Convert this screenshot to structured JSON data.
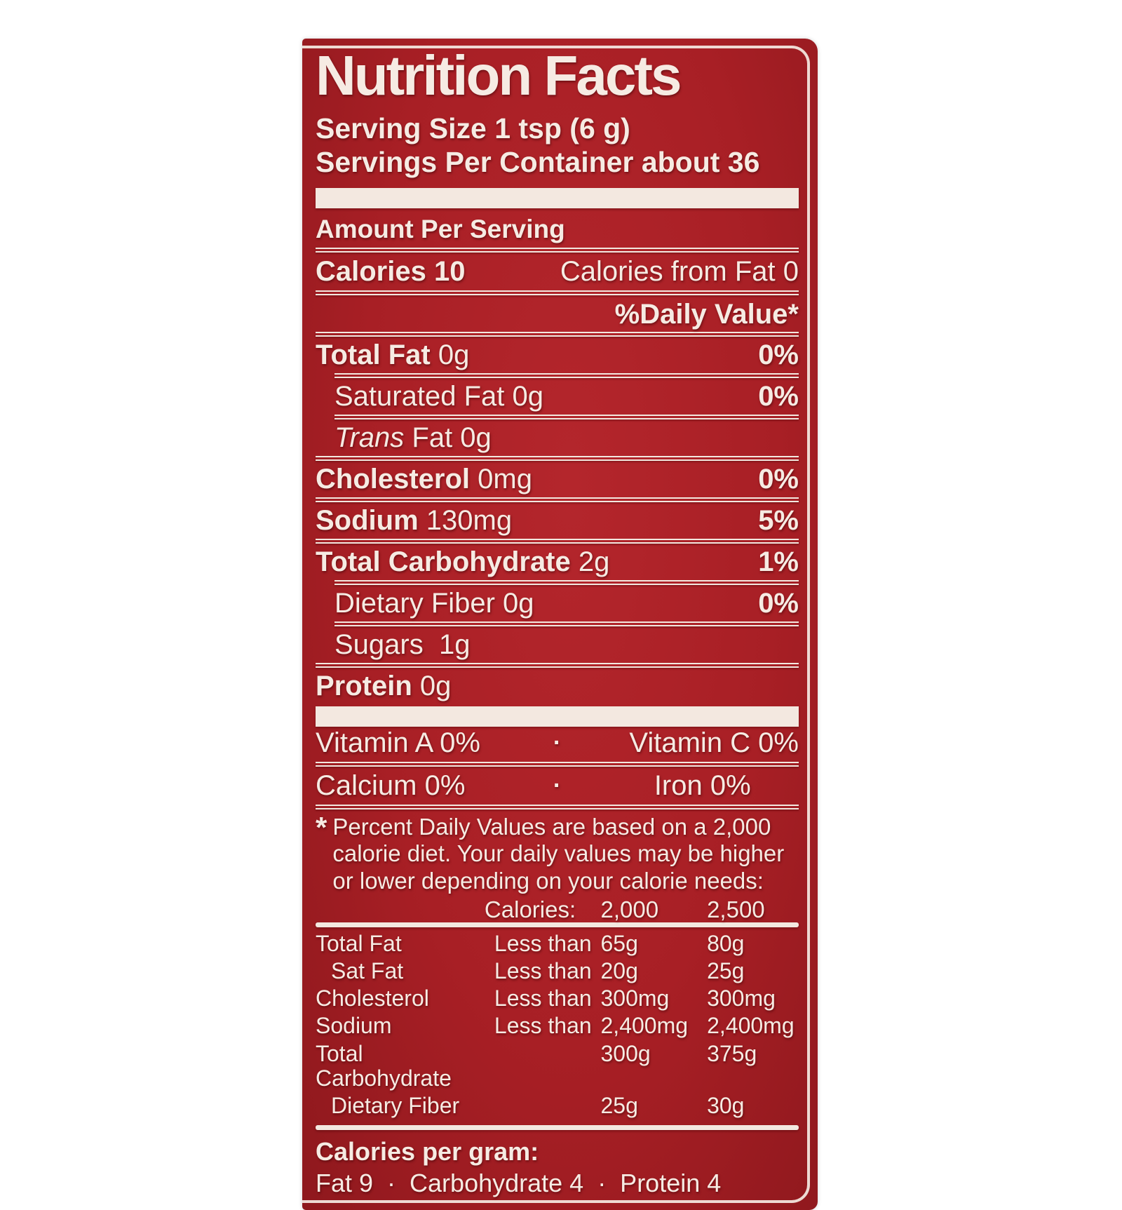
{
  "colors": {
    "label_red": "#a81f25",
    "cream": "#f3e8e0"
  },
  "label": {
    "title": "Nutrition Facts",
    "serving_size": "Serving Size 1 tsp (6 g)",
    "servings_per_container": "Servings Per Container about 36",
    "amount_per_serving": "Amount Per Serving",
    "calories_label": "Calories",
    "calories_value": "10",
    "calories_from_fat": "Calories from Fat 0",
    "daily_value_header": "%Daily Value*",
    "nutrient_rows": [
      {
        "sep": "full",
        "indent": false,
        "parts": [
          {
            "t": "Total Fat",
            "b": true
          },
          {
            "t": " 0g"
          }
        ],
        "dv": "0%"
      },
      {
        "sep": "indent",
        "indent": true,
        "parts": [
          {
            "t": "Saturated Fat 0g"
          }
        ],
        "dv": "0%"
      },
      {
        "sep": "indent",
        "indent": true,
        "parts": [
          {
            "t": "Trans",
            "i": true
          },
          {
            "t": " Fat 0g"
          }
        ],
        "dv": ""
      },
      {
        "sep": "full",
        "indent": false,
        "parts": [
          {
            "t": "Cholesterol",
            "b": true
          },
          {
            "t": " 0mg"
          }
        ],
        "dv": "0%"
      },
      {
        "sep": "full",
        "indent": false,
        "parts": [
          {
            "t": "Sodium",
            "b": true
          },
          {
            "t": " 130mg"
          }
        ],
        "dv": "5%"
      },
      {
        "sep": "full",
        "indent": false,
        "parts": [
          {
            "t": "Total Carbohydrate",
            "b": true
          },
          {
            "t": " 2g"
          }
        ],
        "dv": "1%"
      },
      {
        "sep": "indent",
        "indent": true,
        "parts": [
          {
            "t": "Dietary Fiber 0g"
          }
        ],
        "dv": "0%"
      },
      {
        "sep": "indent",
        "indent": true,
        "parts": [
          {
            "t": "Sugars  1g"
          }
        ],
        "dv": ""
      },
      {
        "sep": "full",
        "indent": false,
        "parts": [
          {
            "t": "Protein",
            "b": true
          },
          {
            "t": " 0g"
          }
        ],
        "dv": ""
      }
    ],
    "vitamin_rows": [
      {
        "left": "Vitamin A 0%",
        "dot": "·",
        "right": "Vitamin C 0%",
        "right_align": "right"
      },
      {
        "left": "Calcium 0%",
        "dot": "·",
        "right": "Iron 0%",
        "right_align": "center"
      }
    ],
    "footnote_star": "*",
    "footnote": "Percent Daily Values are based on a 2,000\ncalorie diet. Your daily values may be higher\nor lower depending on your calorie needs:",
    "dv_table": {
      "header": {
        "calories_label": "Calories:",
        "col_2000": "2,000",
        "col_2500": "2,500"
      },
      "rows": [
        {
          "name": "Total Fat",
          "indent": false,
          "qualifier": "Less than",
          "v2000": "65g",
          "v2500": "80g"
        },
        {
          "name": "Sat Fat",
          "indent": true,
          "qualifier": "Less than",
          "v2000": "20g",
          "v2500": "25g"
        },
        {
          "name": "Cholesterol",
          "indent": false,
          "qualifier": "Less than",
          "v2000": "300mg",
          "v2500": "300mg"
        },
        {
          "name": "Sodium",
          "indent": false,
          "qualifier": "Less than",
          "v2000": "2,400mg",
          "v2500": "2,400mg"
        },
        {
          "name": "Total Carbohydrate",
          "indent": false,
          "qualifier": "",
          "v2000": "300g",
          "v2500": "375g"
        },
        {
          "name": "Dietary Fiber",
          "indent": true,
          "qualifier": "",
          "v2000": "25g",
          "v2500": "30g"
        }
      ]
    },
    "calories_per_gram": {
      "title": "Calories per gram:",
      "bullet": "·",
      "items": [
        "Fat 9",
        "Carbohydrate 4",
        "Protein 4"
      ]
    }
  }
}
